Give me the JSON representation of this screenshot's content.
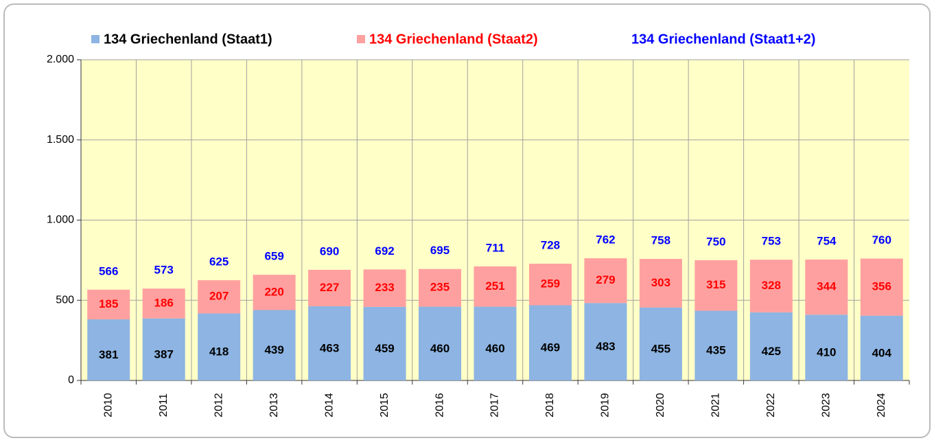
{
  "chart_data": {
    "type": "stacked_bar",
    "categories": [
      "2010",
      "2011",
      "2012",
      "2013",
      "2014",
      "2015",
      "2016",
      "2017",
      "2018",
      "2019",
      "2020",
      "2021",
      "2022",
      "2023",
      "2024"
    ],
    "series": [
      {
        "name": "134 Griechenland (Staat1)",
        "color": "#8db4e2",
        "label_color": "#000000",
        "values": [
          381,
          387,
          418,
          439,
          463,
          459,
          460,
          460,
          469,
          483,
          455,
          435,
          425,
          410,
          404
        ]
      },
      {
        "name": "134 Griechenland (Staat2)",
        "color": "#ffa0a0",
        "label_color": "#ff0000",
        "values": [
          185,
          186,
          207,
          220,
          227,
          233,
          235,
          251,
          259,
          279,
          303,
          315,
          328,
          344,
          356
        ]
      },
      {
        "name": "134 Griechenland (Staat1+2)",
        "color": "#0000ff",
        "values": [
          566,
          573,
          625,
          659,
          690,
          692,
          695,
          711,
          728,
          762,
          758,
          750,
          753,
          754,
          760
        ]
      }
    ],
    "ylim": [
      0,
      2000
    ],
    "yticks": [
      0,
      500,
      {
        "value": 1000,
        "label": "1.000"
      },
      {
        "value": 1500,
        "label": "1.500"
      },
      {
        "value": 2000,
        "label": "2.000"
      }
    ],
    "grid": true,
    "plot_background": "#ffffc8"
  }
}
